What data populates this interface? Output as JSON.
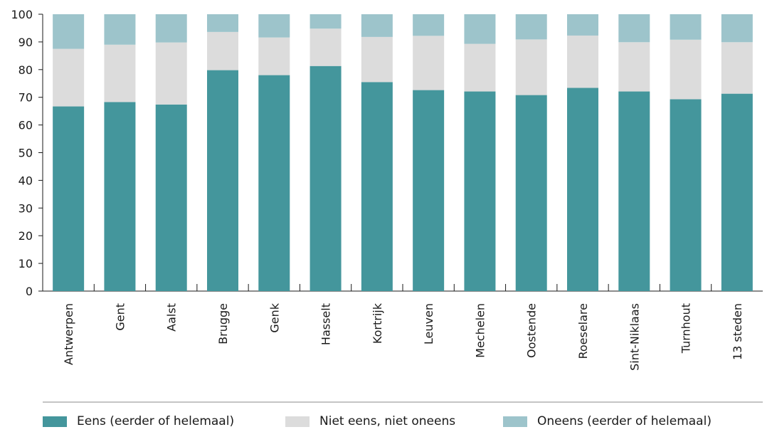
{
  "chart_data": {
    "type": "bar",
    "stacked": true,
    "categories": [
      "Antwerpen",
      "Gent",
      "Aalst",
      "Brugge",
      "Genk",
      "Hasselt",
      "Kortrijk",
      "Leuven",
      "Mechelen",
      "Oostende",
      "Roeselare",
      "Sint-Niklaas",
      "Turnhout",
      "13 steden"
    ],
    "series": [
      {
        "name": "Eens (eerder of helemaal)",
        "color": "#44969c",
        "values": [
          66.7,
          68.3,
          67.4,
          79.8,
          78.0,
          81.3,
          75.5,
          72.6,
          72.1,
          70.8,
          73.4,
          72.1,
          69.3,
          71.3
        ]
      },
      {
        "name": "Niet eens, niet oneens",
        "color": "#dcdcdc",
        "values": [
          20.8,
          20.7,
          22.4,
          13.8,
          13.6,
          13.5,
          16.3,
          19.6,
          17.2,
          20.1,
          18.9,
          17.8,
          21.5,
          18.6
        ]
      },
      {
        "name": "Oneens (eerder of helemaal)",
        "color": "#9dc4cb",
        "values": [
          12.5,
          11.0,
          10.2,
          6.4,
          8.4,
          5.2,
          8.2,
          7.8,
          10.7,
          9.1,
          7.7,
          10.1,
          9.2,
          10.1
        ]
      }
    ],
    "yticks": [
      "0",
      "10",
      "20",
      "30",
      "40",
      "50",
      "60",
      "70",
      "80",
      "90",
      "100"
    ],
    "ylim": [
      0,
      100
    ],
    "title": "",
    "xlabel": "",
    "ylabel": "",
    "legend_position": "bottom",
    "grid": false
  }
}
